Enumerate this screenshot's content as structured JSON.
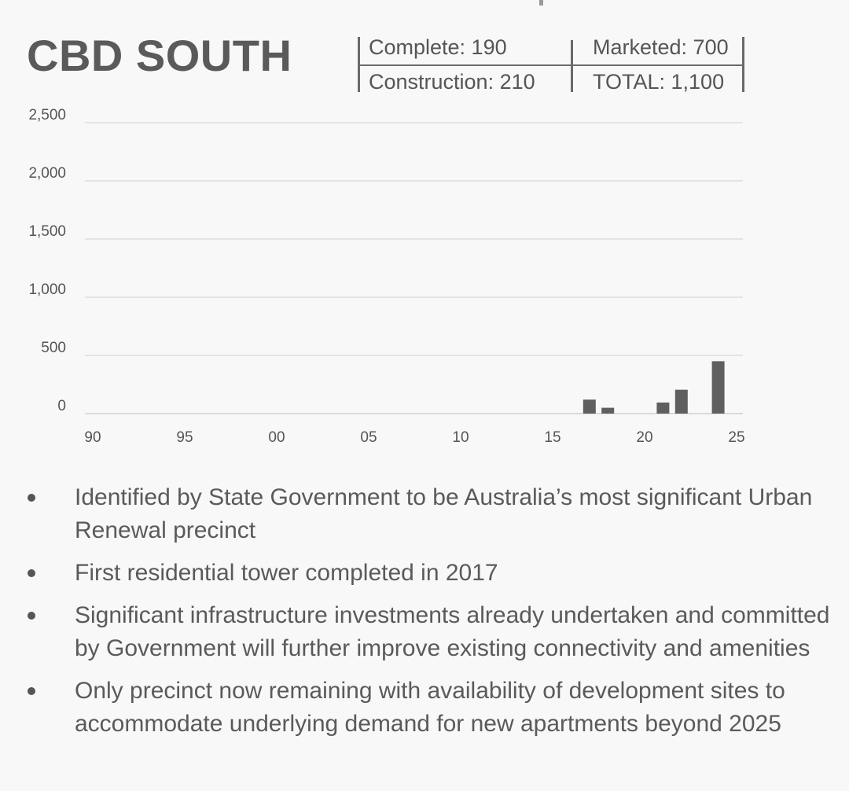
{
  "title": "CBD SOUTH",
  "stats": {
    "complete": "Complete: 190",
    "marketed": "Marketed: 700",
    "construction": "Construction: 210",
    "total": "TOTAL: 1,100"
  },
  "chart_data": {
    "type": "bar",
    "title": "",
    "xlabel": "",
    "ylabel": "",
    "ylim": [
      0,
      2500
    ],
    "xlim": [
      1990,
      2025
    ],
    "y_ticks": [
      0,
      500,
      1000,
      1500,
      2000,
      2500
    ],
    "y_tick_labels": [
      "0",
      "500",
      "1,000",
      "1,500",
      "2,000",
      "2,500"
    ],
    "x_ticks": [
      1990,
      1995,
      2000,
      2005,
      2010,
      2015,
      2020,
      2025
    ],
    "x_tick_labels": [
      "90",
      "95",
      "00",
      "05",
      "10",
      "15",
      "20",
      "25"
    ],
    "grid": true,
    "bar_color": "#5f5f5f",
    "x": [
      2017,
      2018,
      2021,
      2022,
      2024
    ],
    "values": [
      120,
      50,
      95,
      205,
      450
    ]
  },
  "bullets": [
    "Identified by State Government to be Australia’s most significant Urban Renewal precinct",
    "First residential tower completed in 2017",
    "Significant infrastructure investments already undertaken and committed by Government will further improve existing connectivity and amenities",
    "Only precinct now remaining with availability of development sites to accommodate underlying demand for new apartments beyond 2025"
  ]
}
